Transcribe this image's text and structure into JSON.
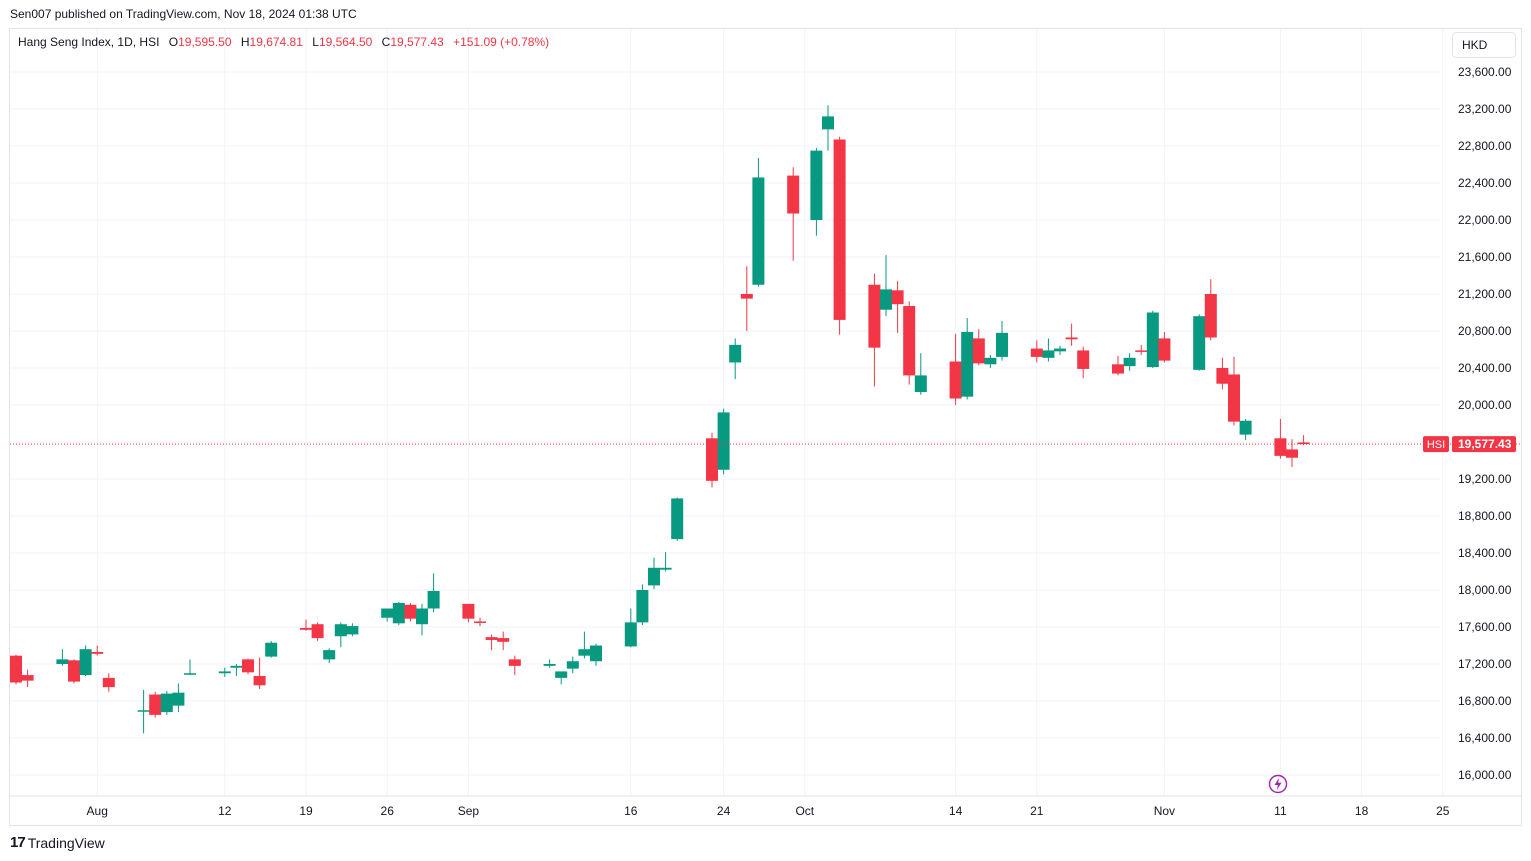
{
  "header": {
    "published_line": "Sen007 published on TradingView.com, Nov 18, 2024 01:38 UTC"
  },
  "legend": {
    "symbol": "Hang Seng Index, 1D, HSI",
    "o_label": "O",
    "o_value": "19,595.50",
    "h_label": "H",
    "h_value": "19,674.81",
    "l_label": "L",
    "l_value": "19,564.50",
    "c_label": "C",
    "c_value": "19,577.43",
    "change": "+151.09 (+0.78%)"
  },
  "currency": "HKD",
  "price_tag": {
    "symbol": "HSI",
    "value": "19,577.43"
  },
  "footer": {
    "brand": "TradingView",
    "logo_glyph": "17"
  },
  "colors": {
    "up": "#089981",
    "down": "#f23645",
    "grid": "#f0f3fa",
    "axis_text": "#131722",
    "last_price_line": "#f23645"
  },
  "icons": {
    "bolt": "lightning-icon"
  },
  "chart_data": {
    "type": "candlestick",
    "title": "Hang Seng Index, 1D, HSI",
    "x_tick_labels": [
      {
        "label": "Aug",
        "date": "2024-08-01"
      },
      {
        "label": "12",
        "date": "2024-08-12"
      },
      {
        "label": "19",
        "date": "2024-08-19"
      },
      {
        "label": "26",
        "date": "2024-08-26"
      },
      {
        "label": "Sep",
        "date": "2024-09-02"
      },
      {
        "label": "16",
        "date": "2024-09-16"
      },
      {
        "label": "24",
        "date": "2024-09-24"
      },
      {
        "label": "Oct",
        "date": "2024-10-01"
      },
      {
        "label": "14",
        "date": "2024-10-14"
      },
      {
        "label": "21",
        "date": "2024-10-21"
      },
      {
        "label": "Nov",
        "date": "2024-11-01"
      },
      {
        "label": "11",
        "date": "2024-11-11"
      },
      {
        "label": "18",
        "date": "2024-11-18"
      },
      {
        "label": "25",
        "date": "2024-11-25"
      }
    ],
    "y_ticks": [
      "16,000.00",
      "16,400.00",
      "16,800.00",
      "17,200.00",
      "17,600.00",
      "18,000.00",
      "18,400.00",
      "18,800.00",
      "19,200.00",
      "19,600.00",
      "20,000.00",
      "20,400.00",
      "20,800.00",
      "21,200.00",
      "21,600.00",
      "22,000.00",
      "22,400.00",
      "22,800.00",
      "23,200.00",
      "23,600.00"
    ],
    "ylim": [
      15950,
      23750
    ],
    "xlim": [
      "2024-07-25",
      "2024-12-01"
    ],
    "last_price": 19577.43,
    "grid": true,
    "candles": [
      {
        "date": "2024-07-25",
        "o": 17290,
        "h": 17300,
        "l": 16980,
        "c": 17000
      },
      {
        "date": "2024-07-26",
        "o": 17080,
        "h": 17140,
        "l": 16950,
        "c": 17020
      },
      {
        "date": "2024-07-29",
        "o": 17200,
        "h": 17360,
        "l": 17180,
        "c": 17250
      },
      {
        "date": "2024-07-30",
        "o": 17240,
        "h": 17250,
        "l": 16990,
        "c": 17010
      },
      {
        "date": "2024-07-31",
        "o": 17080,
        "h": 17400,
        "l": 17070,
        "c": 17360
      },
      {
        "date": "2024-08-01",
        "o": 17330,
        "h": 17400,
        "l": 17290,
        "c": 17310
      },
      {
        "date": "2024-08-02",
        "o": 17050,
        "h": 17100,
        "l": 16900,
        "c": 16950
      },
      {
        "date": "2024-08-05",
        "o": 16700,
        "h": 16920,
        "l": 16450,
        "c": 16700
      },
      {
        "date": "2024-08-06",
        "o": 16870,
        "h": 16900,
        "l": 16620,
        "c": 16650
      },
      {
        "date": "2024-08-07",
        "o": 16680,
        "h": 16910,
        "l": 16650,
        "c": 16880
      },
      {
        "date": "2024-08-08",
        "o": 16750,
        "h": 16990,
        "l": 16680,
        "c": 16890
      },
      {
        "date": "2024-08-09",
        "o": 17100,
        "h": 17250,
        "l": 17080,
        "c": 17100
      },
      {
        "date": "2024-08-12",
        "o": 17100,
        "h": 17160,
        "l": 17060,
        "c": 17120
      },
      {
        "date": "2024-08-13",
        "o": 17160,
        "h": 17200,
        "l": 17070,
        "c": 17180
      },
      {
        "date": "2024-08-14",
        "o": 17250,
        "h": 17260,
        "l": 17090,
        "c": 17110
      },
      {
        "date": "2024-08-15",
        "o": 17070,
        "h": 17270,
        "l": 16930,
        "c": 16970
      },
      {
        "date": "2024-08-16",
        "o": 17280,
        "h": 17450,
        "l": 17270,
        "c": 17430
      },
      {
        "date": "2024-08-19",
        "o": 17590,
        "h": 17680,
        "l": 17560,
        "c": 17570
      },
      {
        "date": "2024-08-20",
        "o": 17630,
        "h": 17650,
        "l": 17450,
        "c": 17480
      },
      {
        "date": "2024-08-21",
        "o": 17250,
        "h": 17370,
        "l": 17210,
        "c": 17350
      },
      {
        "date": "2024-08-22",
        "o": 17500,
        "h": 17650,
        "l": 17380,
        "c": 17630
      },
      {
        "date": "2024-08-23",
        "o": 17520,
        "h": 17640,
        "l": 17500,
        "c": 17610
      },
      {
        "date": "2024-08-26",
        "o": 17700,
        "h": 17800,
        "l": 17660,
        "c": 17800
      },
      {
        "date": "2024-08-27",
        "o": 17640,
        "h": 17870,
        "l": 17620,
        "c": 17860
      },
      {
        "date": "2024-08-28",
        "o": 17840,
        "h": 17860,
        "l": 17660,
        "c": 17690
      },
      {
        "date": "2024-08-29",
        "o": 17630,
        "h": 17850,
        "l": 17510,
        "c": 17800
      },
      {
        "date": "2024-08-30",
        "o": 17800,
        "h": 18180,
        "l": 17760,
        "c": 17990
      },
      {
        "date": "2024-09-02",
        "o": 17850,
        "h": 17850,
        "l": 17650,
        "c": 17690
      },
      {
        "date": "2024-09-03",
        "o": 17660,
        "h": 17700,
        "l": 17610,
        "c": 17650
      },
      {
        "date": "2024-09-04",
        "o": 17490,
        "h": 17520,
        "l": 17350,
        "c": 17460
      },
      {
        "date": "2024-09-05",
        "o": 17480,
        "h": 17550,
        "l": 17350,
        "c": 17440
      },
      {
        "date": "2024-09-06",
        "o": 17250,
        "h": 17290,
        "l": 17080,
        "c": 17180
      },
      {
        "date": "2024-09-09",
        "o": 17180,
        "h": 17250,
        "l": 17160,
        "c": 17200
      },
      {
        "date": "2024-09-10",
        "o": 17050,
        "h": 17100,
        "l": 16980,
        "c": 17120
      },
      {
        "date": "2024-09-11",
        "o": 17150,
        "h": 17280,
        "l": 17100,
        "c": 17230
      },
      {
        "date": "2024-09-12",
        "o": 17290,
        "h": 17550,
        "l": 17260,
        "c": 17360
      },
      {
        "date": "2024-09-13",
        "o": 17230,
        "h": 17420,
        "l": 17180,
        "c": 17400
      },
      {
        "date": "2024-09-16",
        "o": 17390,
        "h": 17800,
        "l": 17380,
        "c": 17650
      },
      {
        "date": "2024-09-17",
        "o": 17650,
        "h": 18060,
        "l": 17620,
        "c": 18000
      },
      {
        "date": "2024-09-18",
        "o": 18050,
        "h": 18350,
        "l": 18010,
        "c": 18240
      },
      {
        "date": "2024-09-19",
        "o": 18220,
        "h": 18410,
        "l": 18200,
        "c": 18240
      },
      {
        "date": "2024-09-20",
        "o": 18550,
        "h": 19000,
        "l": 18530,
        "c": 18990
      },
      {
        "date": "2024-09-23",
        "o": 19640,
        "h": 19700,
        "l": 19110,
        "c": 19180
      },
      {
        "date": "2024-09-24",
        "o": 19300,
        "h": 19960,
        "l": 19250,
        "c": 19920
      },
      {
        "date": "2024-09-25",
        "o": 20460,
        "h": 20720,
        "l": 20280,
        "c": 20650
      },
      {
        "date": "2024-09-26",
        "o": 21200,
        "h": 21500,
        "l": 20800,
        "c": 21150
      },
      {
        "date": "2024-09-27",
        "o": 21300,
        "h": 22670,
        "l": 21280,
        "c": 22460
      },
      {
        "date": "2024-09-30",
        "o": 22480,
        "h": 22570,
        "l": 21560,
        "c": 22070
      },
      {
        "date": "2024-10-02",
        "o": 22000,
        "h": 22780,
        "l": 21830,
        "c": 22750
      },
      {
        "date": "2024-10-03",
        "o": 22980,
        "h": 23240,
        "l": 22750,
        "c": 23120
      },
      {
        "date": "2024-10-04",
        "o": 22870,
        "h": 22900,
        "l": 20760,
        "c": 20920
      },
      {
        "date": "2024-10-07",
        "o": 21300,
        "h": 21420,
        "l": 20200,
        "c": 20620
      },
      {
        "date": "2024-10-08",
        "o": 21030,
        "h": 21620,
        "l": 20960,
        "c": 21250
      },
      {
        "date": "2024-10-09",
        "o": 21240,
        "h": 21340,
        "l": 20780,
        "c": 21090
      },
      {
        "date": "2024-10-10",
        "o": 21070,
        "h": 21120,
        "l": 20220,
        "c": 20320
      },
      {
        "date": "2024-10-11",
        "o": 20140,
        "h": 20560,
        "l": 20110,
        "c": 20320
      },
      {
        "date": "2024-10-14",
        "o": 20470,
        "h": 20770,
        "l": 20000,
        "c": 20070
      },
      {
        "date": "2024-10-15",
        "o": 20090,
        "h": 20940,
        "l": 20060,
        "c": 20790
      },
      {
        "date": "2024-10-16",
        "o": 20720,
        "h": 20820,
        "l": 20430,
        "c": 20450
      },
      {
        "date": "2024-10-17",
        "o": 20440,
        "h": 20540,
        "l": 20400,
        "c": 20510
      },
      {
        "date": "2024-10-18",
        "o": 20520,
        "h": 20910,
        "l": 20480,
        "c": 20780
      },
      {
        "date": "2024-10-21",
        "o": 20610,
        "h": 20700,
        "l": 20460,
        "c": 20520
      },
      {
        "date": "2024-10-22",
        "o": 20510,
        "h": 20720,
        "l": 20470,
        "c": 20590
      },
      {
        "date": "2024-10-23",
        "o": 20580,
        "h": 20640,
        "l": 20540,
        "c": 20610
      },
      {
        "date": "2024-10-24",
        "o": 20730,
        "h": 20880,
        "l": 20640,
        "c": 20710
      },
      {
        "date": "2024-10-25",
        "o": 20590,
        "h": 20630,
        "l": 20290,
        "c": 20390
      },
      {
        "date": "2024-10-28",
        "o": 20440,
        "h": 20530,
        "l": 20320,
        "c": 20340
      },
      {
        "date": "2024-10-29",
        "o": 20420,
        "h": 20560,
        "l": 20370,
        "c": 20510
      },
      {
        "date": "2024-10-30",
        "o": 20590,
        "h": 20650,
        "l": 20540,
        "c": 20580
      },
      {
        "date": "2024-10-31",
        "o": 20410,
        "h": 21020,
        "l": 20400,
        "c": 21000
      },
      {
        "date": "2024-11-01",
        "o": 20720,
        "h": 20790,
        "l": 20460,
        "c": 20480
      },
      {
        "date": "2024-11-04",
        "o": 20380,
        "h": 20980,
        "l": 20370,
        "c": 20960
      },
      {
        "date": "2024-11-05",
        "o": 21200,
        "h": 21360,
        "l": 20700,
        "c": 20730
      },
      {
        "date": "2024-11-06",
        "o": 20400,
        "h": 20510,
        "l": 20170,
        "c": 20230
      },
      {
        "date": "2024-11-07",
        "o": 20330,
        "h": 20520,
        "l": 19780,
        "c": 19820
      },
      {
        "date": "2024-11-08",
        "o": 19680,
        "h": 19850,
        "l": 19620,
        "c": 19830
      },
      {
        "date": "2024-11-11",
        "o": 19640,
        "h": 19850,
        "l": 19420,
        "c": 19450
      },
      {
        "date": "2024-11-12",
        "o": 19520,
        "h": 19630,
        "l": 19330,
        "c": 19430
      },
      {
        "date": "2024-11-13",
        "o": 19595.5,
        "h": 19674.81,
        "l": 19564.5,
        "c": 19577.43
      }
    ]
  }
}
